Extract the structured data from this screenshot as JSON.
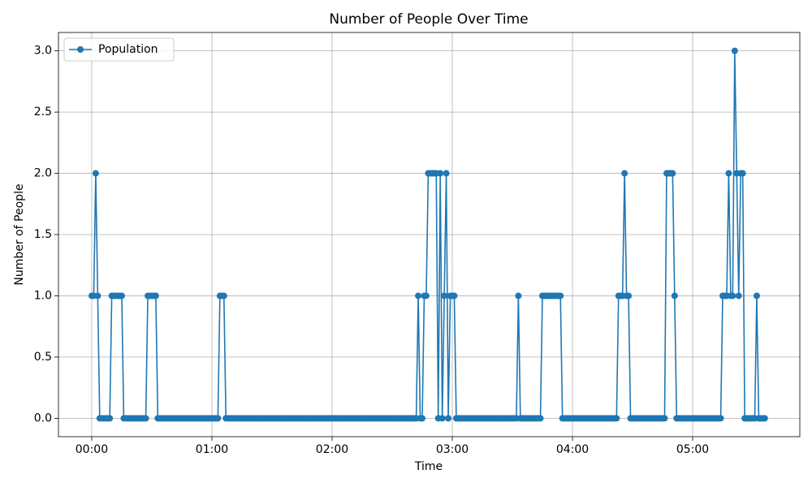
{
  "chart_data": {
    "type": "line",
    "title": "Number of People Over Time",
    "xlabel": "Time",
    "ylabel": "Number of People",
    "x": [
      0,
      1,
      2,
      3,
      4,
      5,
      6,
      7,
      8,
      9,
      10,
      11,
      12,
      13,
      14,
      15,
      16,
      17,
      18,
      19,
      20,
      21,
      22,
      23,
      24,
      25,
      26,
      27,
      28,
      29,
      30,
      31,
      32,
      33,
      34,
      35,
      36,
      37,
      38,
      39,
      40,
      41,
      42,
      43,
      44,
      45,
      46,
      47,
      48,
      49,
      50,
      51,
      52,
      53,
      54,
      55,
      56,
      57,
      58,
      59,
      60,
      61,
      62,
      63,
      64,
      65,
      66,
      67,
      68,
      69,
      70,
      71,
      72,
      73,
      74,
      75,
      76,
      77,
      78,
      79,
      80,
      81,
      82,
      83,
      84,
      85,
      86,
      87,
      88,
      89,
      90,
      91,
      92,
      93,
      94,
      95,
      96,
      97,
      98,
      99,
      100,
      101,
      102,
      103,
      104,
      105,
      106,
      107,
      108,
      109,
      110,
      111,
      112,
      113,
      114,
      115,
      116,
      117,
      118,
      119,
      120,
      121,
      122,
      123,
      124,
      125,
      126,
      127,
      128,
      129,
      130,
      131,
      132,
      133,
      134,
      135,
      136,
      137,
      138,
      139,
      140,
      141,
      142,
      143,
      144,
      145,
      146,
      147,
      148,
      149,
      150,
      151,
      152,
      153,
      154,
      155,
      156,
      157,
      158,
      159,
      160,
      161,
      162,
      163,
      164,
      165,
      166,
      167,
      168,
      169,
      170,
      171,
      172,
      173,
      174,
      175,
      176,
      177,
      178,
      179,
      180,
      181,
      182,
      183,
      184,
      185,
      186,
      187,
      188,
      189,
      190,
      191,
      192,
      193,
      194,
      195,
      196,
      197,
      198,
      199,
      200,
      201,
      202,
      203,
      204,
      205,
      206,
      207,
      208,
      209,
      210,
      211,
      212,
      213,
      214,
      215,
      216,
      217,
      218,
      219,
      220,
      221,
      222,
      223,
      224,
      225,
      226,
      227,
      228,
      229,
      230,
      231,
      232,
      233,
      234,
      235,
      236,
      237,
      238,
      239,
      240,
      241,
      242,
      243,
      244,
      245,
      246,
      247,
      248,
      249,
      250,
      251,
      252,
      253,
      254,
      255,
      256,
      257,
      258,
      259,
      260,
      261,
      262,
      263,
      264,
      265,
      266,
      267,
      268,
      269,
      270,
      271,
      272,
      273,
      274,
      275,
      276,
      277,
      278,
      279,
      280,
      281,
      282,
      283,
      284,
      285,
      286,
      287,
      288,
      289,
      290,
      291,
      292,
      293,
      294,
      295,
      296,
      297,
      298,
      299,
      300,
      301,
      302,
      303,
      304,
      305,
      306,
      307,
      308,
      309,
      310,
      311,
      312,
      313,
      314,
      315,
      316,
      317,
      318,
      319,
      320,
      321,
      322,
      323,
      324,
      325,
      326,
      327,
      328,
      329,
      330,
      331,
      332,
      333,
      334,
      335,
      336
    ],
    "series": [
      {
        "name": "Population",
        "color": "#1f77b4",
        "values": [
          1,
          1,
          2,
          1,
          0,
          0,
          0,
          0,
          0,
          0,
          1,
          1,
          1,
          1,
          1,
          1,
          0,
          0,
          0,
          0,
          0,
          0,
          0,
          0,
          0,
          0,
          0,
          0,
          1,
          1,
          1,
          1,
          1,
          0,
          0,
          0,
          0,
          0,
          0,
          0,
          0,
          0,
          0,
          0,
          0,
          0,
          0,
          0,
          0,
          0,
          0,
          0,
          0,
          0,
          0,
          0,
          0,
          0,
          0,
          0,
          0,
          0,
          0,
          0,
          1,
          1,
          1,
          0,
          0,
          0,
          0,
          0,
          0,
          0,
          0,
          0,
          0,
          0,
          0,
          0,
          0,
          0,
          0,
          0,
          0,
          0,
          0,
          0,
          0,
          0,
          0,
          0,
          0,
          0,
          0,
          0,
          0,
          0,
          0,
          0,
          0,
          0,
          0,
          0,
          0,
          0,
          0,
          0,
          0,
          0,
          0,
          0,
          0,
          0,
          0,
          0,
          0,
          0,
          0,
          0,
          0,
          0,
          0,
          0,
          0,
          0,
          0,
          0,
          0,
          0,
          0,
          0,
          0,
          0,
          0,
          0,
          0,
          0,
          0,
          0,
          0,
          0,
          0,
          0,
          0,
          0,
          0,
          0,
          0,
          0,
          0,
          0,
          0,
          0,
          0,
          0,
          0,
          0,
          0,
          0,
          0,
          0,
          0,
          1,
          0,
          0,
          1,
          1,
          2,
          2,
          2,
          2,
          2,
          0,
          2,
          0,
          1,
          2,
          0,
          1,
          1,
          1,
          0,
          0,
          0,
          0,
          0,
          0,
          0,
          0,
          0,
          0,
          0,
          0,
          0,
          0,
          0,
          0,
          0,
          0,
          0,
          0,
          0,
          0,
          0,
          0,
          0,
          0,
          0,
          0,
          0,
          0,
          0,
          1,
          0,
          0,
          0,
          0,
          0,
          0,
          0,
          0,
          0,
          0,
          0,
          1,
          1,
          1,
          1,
          1,
          1,
          1,
          1,
          1,
          1,
          0,
          0,
          0,
          0,
          0,
          0,
          0,
          0,
          0,
          0,
          0,
          0,
          0,
          0,
          0,
          0,
          0,
          0,
          0,
          0,
          0,
          0,
          0,
          0,
          0,
          0,
          0,
          0,
          1,
          1,
          1,
          2,
          1,
          1,
          0,
          0,
          0,
          0,
          0,
          0,
          0,
          0,
          0,
          0,
          0,
          0,
          0,
          0,
          0,
          0,
          0,
          0,
          2,
          2,
          2,
          2,
          1,
          0,
          0,
          0,
          0,
          0,
          0,
          0,
          0,
          0,
          0,
          0,
          0,
          0,
          0,
          0,
          0,
          0,
          0,
          0,
          0,
          0,
          0,
          0,
          1,
          1,
          1,
          2,
          1,
          1,
          3,
          2,
          1,
          2,
          2,
          0,
          0,
          0,
          0,
          0,
          0,
          1,
          0,
          0,
          0,
          0
        ]
      }
    ],
    "xlim": [
      -16.6,
      353.5
    ],
    "ylim": [
      -0.15,
      3.15
    ],
    "xticks": [
      {
        "value": 0,
        "label": "00:00"
      },
      {
        "value": 60,
        "label": "01:00"
      },
      {
        "value": 120,
        "label": "02:00"
      },
      {
        "value": 180,
        "label": "03:00"
      },
      {
        "value": 240,
        "label": "04:00"
      },
      {
        "value": 300,
        "label": "05:00"
      }
    ],
    "yticks": [
      {
        "value": 0,
        "label": "0.0"
      },
      {
        "value": 0.5,
        "label": "0.5"
      },
      {
        "value": 1,
        "label": "1.0"
      },
      {
        "value": 1.5,
        "label": "1.5"
      },
      {
        "value": 2,
        "label": "2.0"
      },
      {
        "value": 2.5,
        "label": "2.5"
      },
      {
        "value": 3,
        "label": "3.0"
      }
    ],
    "grid": true,
    "legend": "upper left"
  }
}
